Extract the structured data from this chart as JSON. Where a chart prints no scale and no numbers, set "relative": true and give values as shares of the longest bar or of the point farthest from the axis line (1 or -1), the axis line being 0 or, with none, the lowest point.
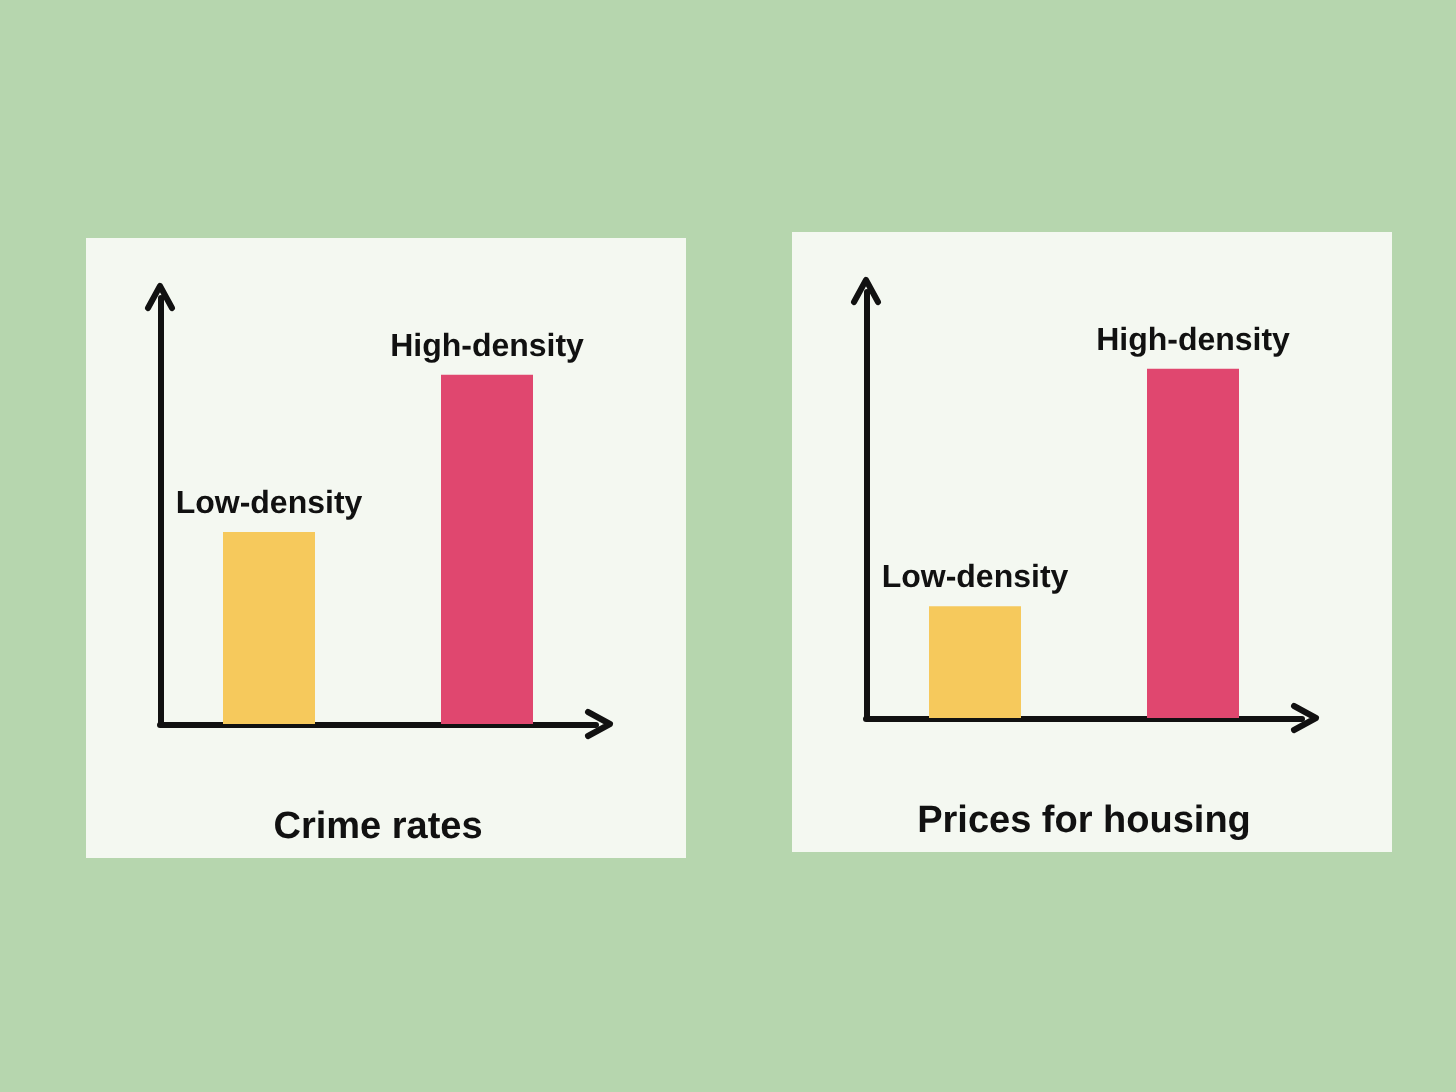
{
  "chart_data": [
    {
      "type": "bar",
      "xlabel": "Crime rates",
      "categories": [
        "Low-density",
        "High-density"
      ],
      "relative": true,
      "tick_labels": false,
      "colors": [
        "#f6c95c",
        "#e0476f"
      ],
      "values": [
        0.55,
        1
      ]
    },
    {
      "type": "bar",
      "xlabel": "Prices for housing",
      "categories": [
        "Low-density",
        "High-density"
      ],
      "relative": true,
      "tick_labels": false,
      "colors": [
        "#f6c95c",
        "#e0476f"
      ],
      "values": [
        0.32,
        1
      ]
    }
  ]
}
